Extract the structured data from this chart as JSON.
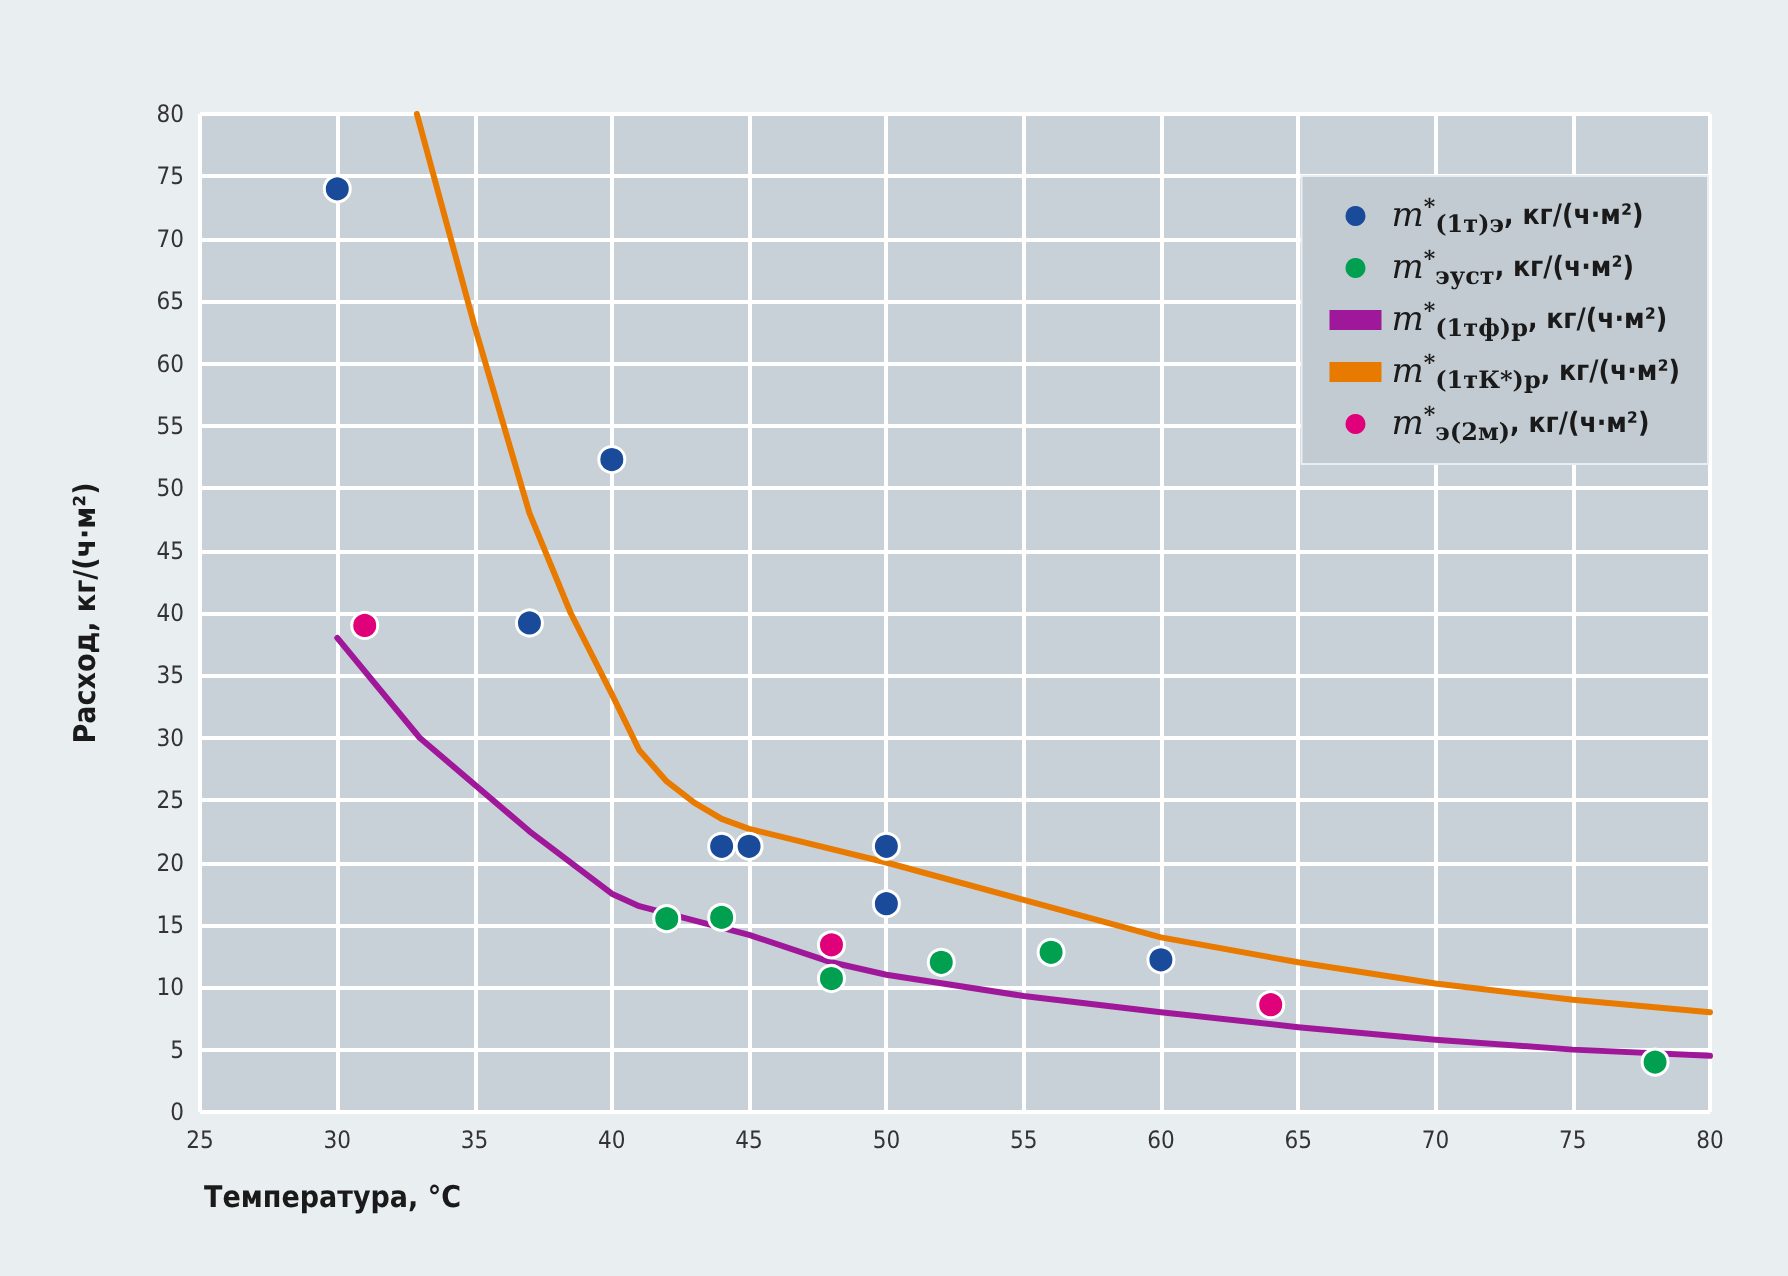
{
  "chart_data": {
    "type": "scatter",
    "xlabel": "Температура, °C",
    "ylabel": "Расход, кг/(ч·м²)",
    "xlim": [
      25,
      80
    ],
    "xticks": [
      25,
      30,
      35,
      40,
      45,
      50,
      55,
      60,
      65,
      70,
      75,
      80
    ],
    "ylim": [
      0,
      80
    ],
    "yticks": [
      0,
      5,
      10,
      15,
      20,
      25,
      30,
      35,
      40,
      45,
      50,
      55,
      60,
      65,
      70,
      75,
      80
    ],
    "grid": true,
    "legend": "top right",
    "marker": "circle",
    "series": [
      {
        "name": "m$^{*}$$_{(1т)э}$, кг/(ч·м²)",
        "color": "#1a4a9a",
        "x": [
          30,
          37,
          40,
          44,
          45,
          50,
          50,
          60
        ],
        "values": [
          74,
          39.2,
          52.3,
          21.3,
          21.3,
          21.3,
          16.7,
          12.2
        ]
      },
      {
        "name": "m$^{*}$$_{эуст}$, кг/(ч·м²)",
        "color": "#00a050",
        "x": [
          42,
          44,
          48,
          52,
          56,
          78
        ],
        "values": [
          15.5,
          15.6,
          10.7,
          12,
          12.8,
          4
        ]
      },
      {
        "name": "m$^{*}$$_{(1тф)р}$, кг/(ч·м²)",
        "type": "line",
        "marker": "none",
        "color": "#a0189a",
        "x": [
          30,
          33,
          37,
          40,
          41,
          45,
          48,
          50,
          55,
          60,
          65,
          70,
          75,
          80
        ],
        "values": [
          38,
          30,
          22.5,
          17.5,
          16.5,
          14.2,
          12,
          11,
          9.3,
          8,
          6.8,
          5.8,
          5,
          4.5
        ]
      },
      {
        "name": "m$^{*}$$_{(1тК*)р}$, кг/(ч·м²)",
        "type": "line",
        "marker": "none",
        "color": "#e87a00",
        "x": [
          32.9,
          35,
          37,
          38.5,
          40,
          41,
          42,
          43,
          44,
          45,
          50,
          55,
          60,
          65,
          70,
          75,
          80
        ],
        "values": [
          80,
          63,
          48,
          40,
          33.5,
          29,
          26.5,
          24.8,
          23.5,
          22.7,
          20,
          17,
          14,
          12,
          10.3,
          9,
          8
        ]
      },
      {
        "name": "m$^{*}$$_{э(2м)}$, кг/(ч·м²)",
        "color": "#e0007a",
        "x": [
          31,
          48,
          64
        ],
        "values": [
          39,
          13.4,
          8.6
        ]
      }
    ]
  }
}
